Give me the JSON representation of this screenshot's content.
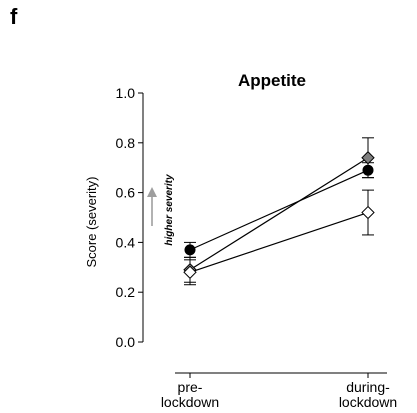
{
  "panel_letter": "f",
  "chart_data": {
    "type": "line",
    "title": "Appetite",
    "ylabel": "Score (severity)",
    "xlabel": "",
    "categories": [
      "pre-\nlockdown",
      "during-\nlockdown"
    ],
    "ylim": [
      0.0,
      1.0
    ],
    "yticks": [
      "0.0",
      "0.2",
      "0.4",
      "0.6",
      "0.8",
      "1.0"
    ],
    "annotation": "higher severity",
    "series": [
      {
        "marker": "circle",
        "fill": "#000000",
        "values": [
          0.37,
          0.69
        ],
        "err": [
          0.03,
          0.03
        ]
      },
      {
        "marker": "diamond",
        "fill": "#808080",
        "values": [
          0.29,
          0.74
        ],
        "err": [
          0.05,
          0.08
        ]
      },
      {
        "marker": "diamond",
        "fill": "#ffffff",
        "values": [
          0.28,
          0.52
        ],
        "err": [
          0.05,
          0.09
        ]
      }
    ],
    "grid": false,
    "legend": "none"
  }
}
